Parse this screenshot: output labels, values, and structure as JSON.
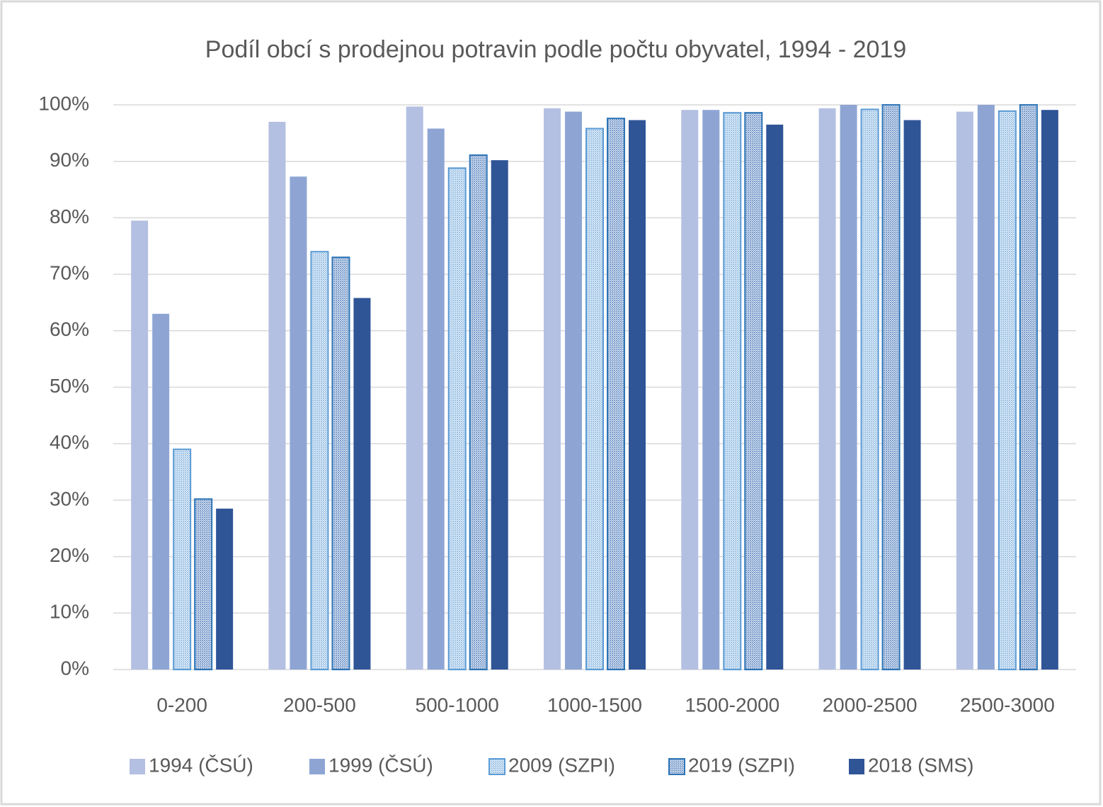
{
  "chart_data": {
    "type": "bar",
    "title": "Podíl obcí s prodejnou potravin podle počtu obyvatel, 1994 - 2019",
    "categories": [
      "0-200",
      "200-500",
      "500-1000",
      "1000-1500",
      "1500-2000",
      "2000-2500",
      "2500-3000"
    ],
    "series": [
      {
        "name": "1994 (ČSÚ)",
        "color": "#b4c0e2",
        "values": [
          79.5,
          97,
          99.7,
          99.4,
          99.1,
          99.4,
          98.8
        ]
      },
      {
        "name": "1999 (ČSÚ)",
        "color": "#8ea5d4",
        "values": [
          63,
          87.3,
          95.8,
          98.8,
          99.1,
          100,
          100
        ]
      },
      {
        "name": "2009 (SZPI)",
        "color": "#9dc3e6",
        "edgecolor": "#5b9bd5",
        "pattern": "dots",
        "values": [
          39,
          74,
          88.8,
          95.8,
          98.6,
          99.2,
          98.9
        ]
      },
      {
        "name": "2019 (SZPI)",
        "color": "#7a9ccc",
        "edgecolor": "#2e75b6",
        "pattern": "dots",
        "values": [
          30.2,
          73,
          91.1,
          97.6,
          98.6,
          100,
          100
        ]
      },
      {
        "name": "2018 (SMS)",
        "color": "#2f5597",
        "values": [
          28.5,
          65.8,
          90.2,
          97.3,
          96.5,
          97.3,
          99.1
        ]
      }
    ],
    "ylim": [
      0,
      100
    ],
    "yticks": [
      {
        "value": 0,
        "label": "0%"
      },
      {
        "value": 10,
        "label": "10%"
      },
      {
        "value": 20,
        "label": "20%"
      },
      {
        "value": 30,
        "label": "30%"
      },
      {
        "value": 40,
        "label": "40%"
      },
      {
        "value": 50,
        "label": "50%"
      },
      {
        "value": 60,
        "label": "60%"
      },
      {
        "value": 70,
        "label": "70%"
      },
      {
        "value": 80,
        "label": "80%"
      },
      {
        "value": 90,
        "label": "90%"
      },
      {
        "value": 100,
        "label": "100%"
      }
    ],
    "grid": true,
    "legend": "bottom"
  }
}
